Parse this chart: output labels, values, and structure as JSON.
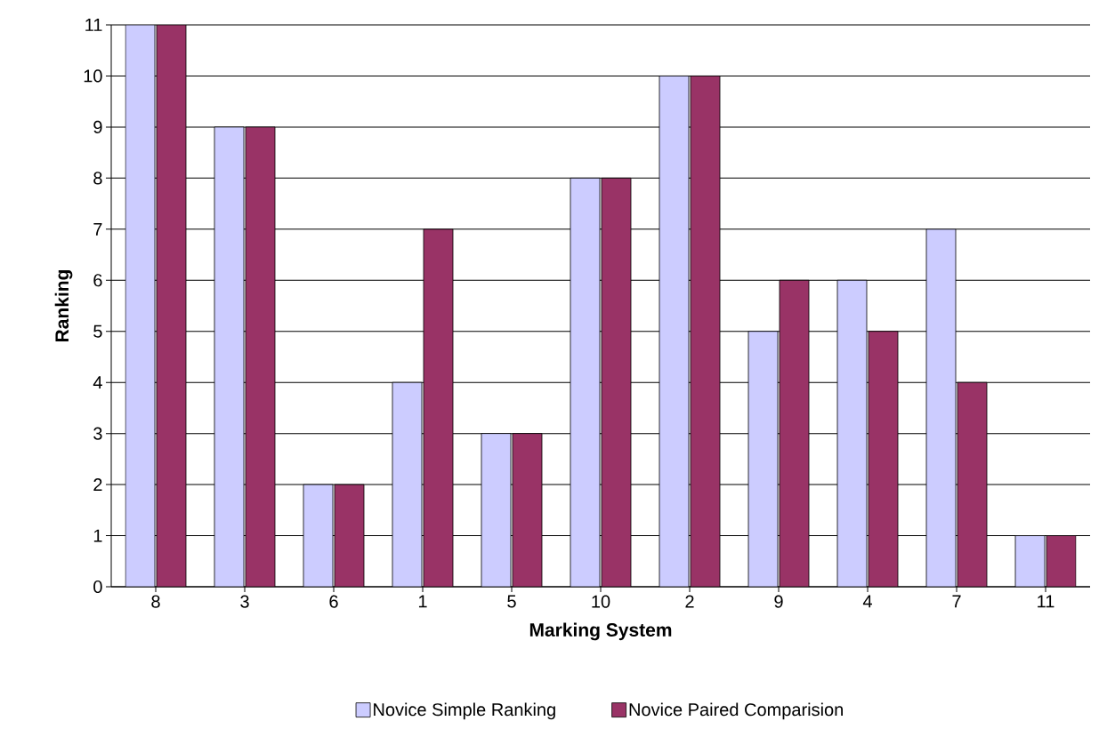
{
  "chart_data": {
    "type": "bar",
    "xlabel": "Marking System",
    "ylabel": "Ranking",
    "categories": [
      "8",
      "3",
      "6",
      "1",
      "5",
      "10",
      "2",
      "9",
      "4",
      "7",
      "11"
    ],
    "series": [
      {
        "name": "Novice Simple Ranking",
        "color": "#ccccff",
        "values": [
          11,
          9,
          2,
          4,
          3,
          8,
          10,
          5,
          6,
          7,
          1
        ]
      },
      {
        "name": "Novice Paired Comparision",
        "color": "#993366",
        "values": [
          11,
          9,
          2,
          7,
          3,
          8,
          10,
          6,
          5,
          4,
          1
        ]
      }
    ],
    "ylim": [
      0,
      11
    ],
    "yticks": [
      0,
      1,
      2,
      3,
      4,
      5,
      6,
      7,
      8,
      9,
      10,
      11
    ],
    "grid": "y",
    "legend": "bottom"
  }
}
